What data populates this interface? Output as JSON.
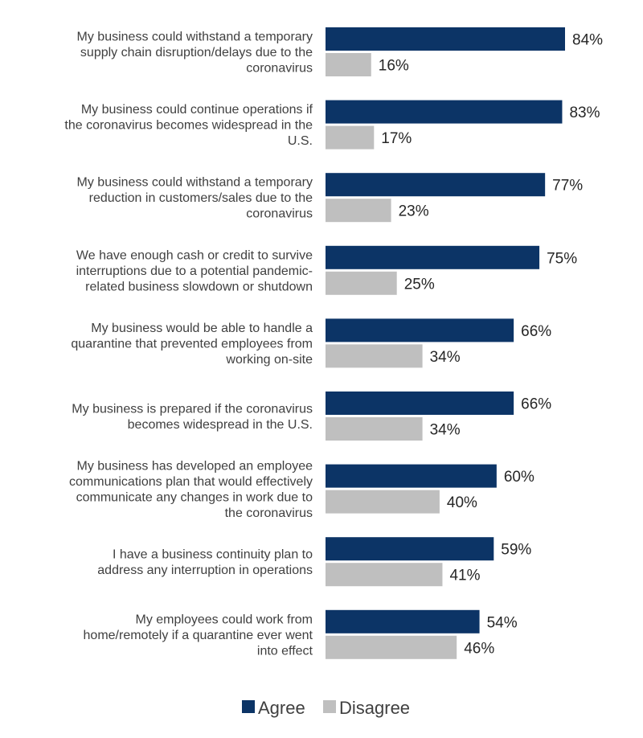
{
  "chart_data": {
    "type": "bar",
    "orientation": "horizontal",
    "categories": [
      [
        "My business could withstand a temporary",
        "supply chain disruption/delays due to the",
        "coronavirus"
      ],
      [
        "My business could continue operations if",
        "the coronavirus becomes widespread in the",
        "U.S."
      ],
      [
        "My business could withstand a temporary",
        "reduction in customers/sales due to the",
        "coronavirus"
      ],
      [
        "We have enough cash or credit to survive",
        "interruptions due to a potential pandemic-",
        "related business slowdown or shutdown"
      ],
      [
        "My business would be able to handle a",
        "quarantine that prevented employees from",
        "working on-site"
      ],
      [
        "My business is prepared if the coronavirus",
        "becomes widespread in the U.S."
      ],
      [
        "My business has developed an employee",
        "communications plan that would effectively",
        "communicate any changes in work due to",
        "the coronavirus"
      ],
      [
        "I have a business continuity plan to",
        "address any interruption in operations"
      ],
      [
        "My employees could work from",
        "home/remotely if a quarantine ever went",
        "into effect"
      ]
    ],
    "series": [
      {
        "name": "Agree",
        "color": "#0c3466",
        "values": [
          84,
          83,
          77,
          75,
          66,
          66,
          60,
          59,
          54
        ]
      },
      {
        "name": "Disagree",
        "color": "#bfbfbf",
        "values": [
          16,
          17,
          23,
          25,
          34,
          34,
          40,
          41,
          46
        ]
      }
    ],
    "value_suffix": "%",
    "xlim": [
      0,
      100
    ],
    "grid": false,
    "legend": {
      "position": "bottom"
    }
  }
}
